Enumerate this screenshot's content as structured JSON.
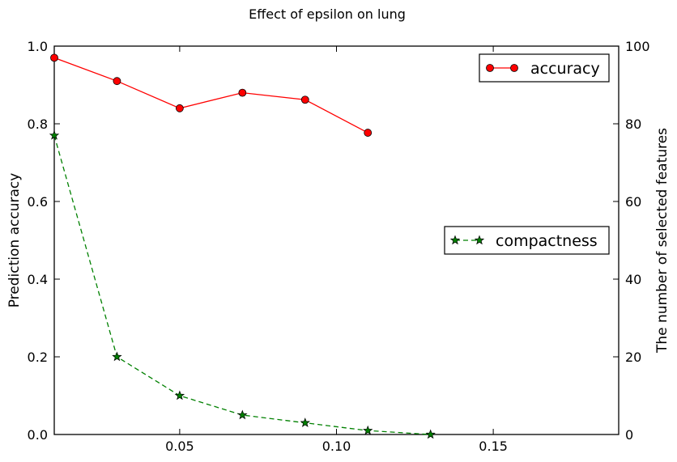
{
  "chart_data": {
    "type": "line",
    "title": "Effect of epsilon on lung",
    "xlabel": "",
    "ylabel": "Prediction accuracy",
    "y2label": "The number of selected features",
    "xlim": [
      0.01,
      0.19
    ],
    "ylim": [
      0,
      1.0
    ],
    "y2lim": [
      0,
      100
    ],
    "xticks": [
      "0.05",
      "0.10",
      "0.15"
    ],
    "yticks": [
      "0.0",
      "0.2",
      "0.4",
      "0.6",
      "0.8",
      "1.0"
    ],
    "y2ticks": [
      "0",
      "20",
      "40",
      "60",
      "80",
      "100"
    ],
    "grid": false,
    "series": [
      {
        "name": "accuracy",
        "axis": "left",
        "color": "#ff0000",
        "marker": "circle",
        "linestyle": "solid",
        "legend_position": "top-right",
        "x": [
          0.01,
          0.03,
          0.05,
          0.07,
          0.09,
          0.11
        ],
        "y": [
          0.97,
          0.91,
          0.84,
          0.88,
          0.862,
          0.777
        ]
      },
      {
        "name": "compactness",
        "axis": "right",
        "color": "#008000",
        "marker": "star",
        "linestyle": "dashed",
        "legend_position": "center-right",
        "x": [
          0.01,
          0.03,
          0.05,
          0.07,
          0.09,
          0.11,
          0.13
        ],
        "y": [
          77,
          20,
          10,
          5,
          3,
          1,
          0
        ]
      }
    ]
  }
}
